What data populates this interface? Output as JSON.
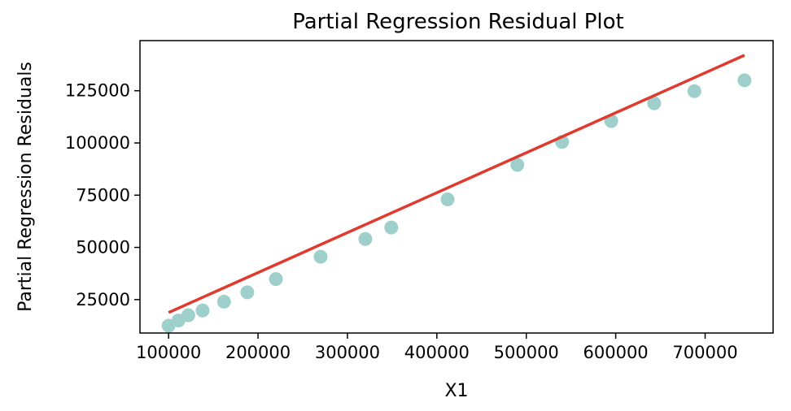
{
  "chart_data": {
    "type": "scatter",
    "title": "Partial Regression Residual Plot",
    "xlabel": "X1",
    "ylabel": "Partial Regression Residuals",
    "xlim": [
      68000,
      776000
    ],
    "ylim": [
      9000,
      149000
    ],
    "xticks": [
      100000,
      200000,
      300000,
      400000,
      500000,
      600000,
      700000
    ],
    "yticks": [
      25000,
      50000,
      75000,
      100000,
      125000
    ],
    "xtick_labels": [
      "100000",
      "200000",
      "300000",
      "400000",
      "500000",
      "600000",
      "700000"
    ],
    "ytick_labels": [
      "25000",
      "50000",
      "75000",
      "100000",
      "125000"
    ],
    "grid": false,
    "series": [
      {
        "type": "scatter",
        "color": "#9ecfca",
        "x": [
          100000,
          111000,
          122000,
          138000,
          162000,
          188000,
          220000,
          270000,
          320000,
          349000,
          412000,
          490000,
          540000,
          595000,
          643000,
          688000,
          744000
        ],
        "y": [
          12500,
          15000,
          17500,
          19800,
          24000,
          28500,
          34800,
          45500,
          54000,
          59500,
          73000,
          89500,
          100500,
          110500,
          119000,
          124800,
          130000
        ]
      },
      {
        "type": "line",
        "color": "#e0392d",
        "x": [
          100000,
          744000
        ],
        "y": [
          18800,
          142000
        ]
      }
    ]
  }
}
